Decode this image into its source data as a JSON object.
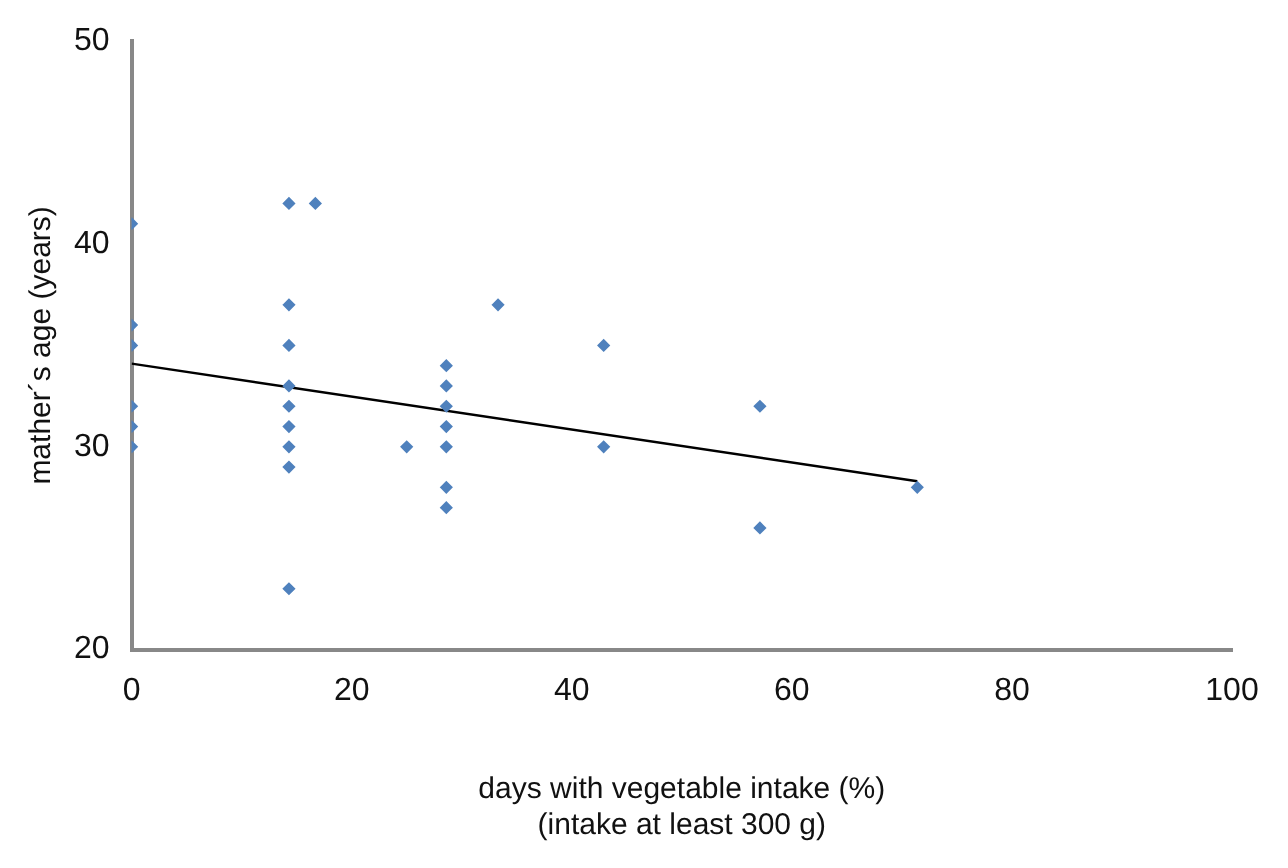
{
  "chart_data": {
    "type": "scatter",
    "xlabel": "days with vegetable intake (%)\n(intake at least 300 g)",
    "ylabel": "mather´s age (years)",
    "xlim": [
      0,
      100
    ],
    "xticks": [
      0,
      20,
      40,
      60,
      80,
      100
    ],
    "ylim": [
      20,
      50
    ],
    "yticks": [
      20,
      30,
      40,
      50
    ],
    "grid": false,
    "legend": false,
    "marker": "diamond",
    "series": [
      {
        "color": "#4f81bd",
        "x": [
          0,
          0,
          0,
          0,
          0,
          0,
          14.3,
          14.3,
          14.3,
          14.3,
          14.3,
          14.3,
          14.3,
          14.3,
          14.3,
          16.7,
          25,
          28.6,
          28.6,
          28.6,
          28.6,
          28.6,
          28.6,
          28.6,
          33.3,
          42.9,
          42.9,
          57.1,
          57.1,
          71.4
        ],
        "values": [
          41,
          36,
          35,
          32,
          31,
          30,
          42,
          37,
          35,
          33,
          32,
          31,
          30,
          29,
          23,
          42,
          30,
          34,
          33,
          32,
          31,
          30,
          28,
          27,
          37,
          35,
          30,
          32,
          26,
          28
        ]
      },
      {
        "type": "line",
        "color": "#000000",
        "x": [
          0,
          71.4
        ],
        "values": [
          34.1,
          28.3
        ],
        "marker": "none"
      }
    ]
  }
}
